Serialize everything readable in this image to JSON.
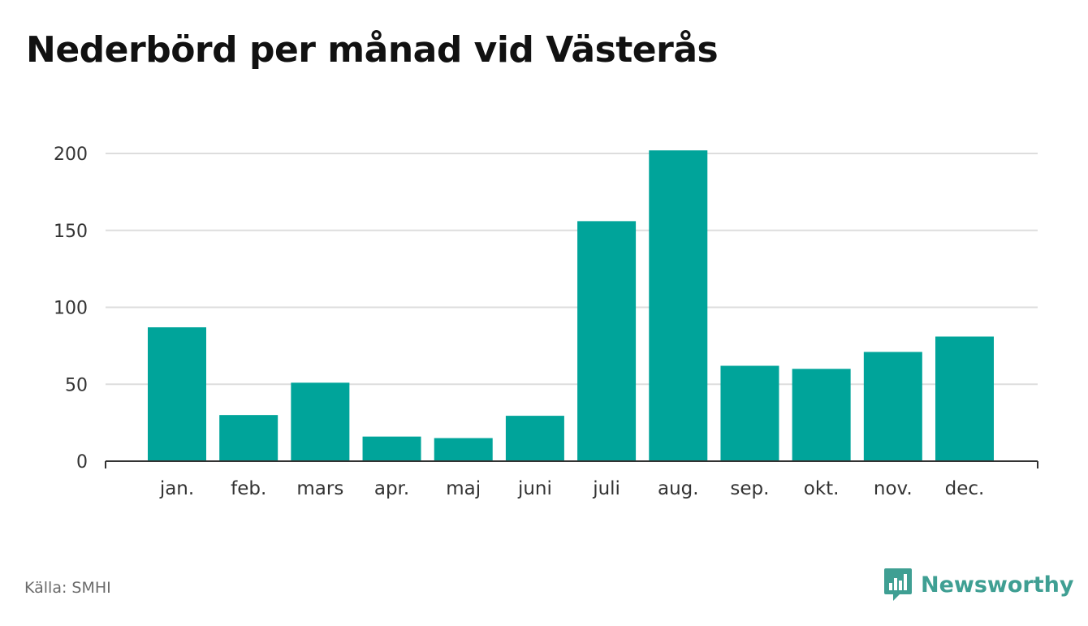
{
  "chart_data": {
    "type": "bar",
    "title": "Nederbörd per månad vid Västerås",
    "categories": [
      "jan.",
      "feb.",
      "mars",
      "apr.",
      "maj",
      "juni",
      "juli",
      "aug.",
      "sep.",
      "okt.",
      "nov.",
      "dec."
    ],
    "values": [
      87,
      30,
      51,
      16,
      15,
      29.5,
      156,
      202,
      62,
      60,
      71,
      81
    ],
    "xlabel": "",
    "ylabel": "",
    "ylim": [
      0,
      200
    ],
    "yticks": [
      "0",
      "50",
      "100",
      "150",
      "200"
    ],
    "grid": true,
    "bar_color": "#00a49a",
    "legend": "none"
  },
  "footer": {
    "source": "Källa: SMHI",
    "brand": "Newsworthy"
  },
  "colors": {
    "brand": "#3f9f93",
    "grid": "#dddddd",
    "axis": "#333333"
  },
  "icons": {
    "brand_logo": "bar-chart-speech-bubble-icon"
  }
}
